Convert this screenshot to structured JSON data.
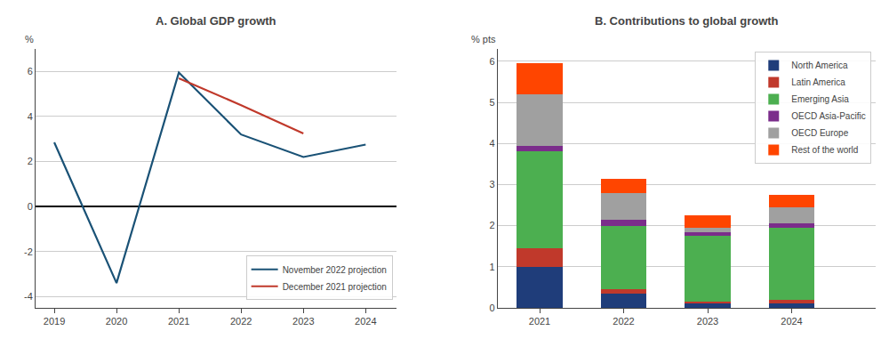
{
  "chart_data": [
    {
      "type": "line",
      "title": "A. Global GDP growth",
      "y_label": "%",
      "x": [
        2019,
        2020,
        2021,
        2022,
        2023,
        2024
      ],
      "series": [
        {
          "name": "November 2022 projection",
          "color": "#1a5276",
          "values": [
            2.85,
            -3.4,
            5.95,
            3.2,
            2.2,
            2.75
          ]
        },
        {
          "name": "December 2021 projection",
          "color": "#c0392b",
          "values": [
            null,
            null,
            5.7,
            4.5,
            3.25,
            null
          ]
        }
      ],
      "xlim": [
        2018.7,
        2024.5
      ],
      "xticks": [
        2019,
        2020,
        2021,
        2022,
        2023,
        2024
      ],
      "ylim": [
        -4.5,
        7
      ],
      "yticks": [
        -4,
        -2,
        0,
        2,
        4,
        6
      ],
      "grid": true,
      "legend": "lower right"
    },
    {
      "type": "bar",
      "title": "B. Contributions to global growth",
      "y_label": "% pts",
      "stacked": true,
      "x": [
        2021,
        2022,
        2023,
        2024
      ],
      "series": [
        {
          "name": "North America",
          "color": "#1f3d7a",
          "values": [
            1.0,
            0.35,
            0.1,
            0.1
          ]
        },
        {
          "name": "Latin America",
          "color": "#c0392b",
          "values": [
            0.45,
            0.1,
            0.05,
            0.1
          ]
        },
        {
          "name": "Emerging Asia",
          "color": "#4caf50",
          "values": [
            2.35,
            1.55,
            1.6,
            1.75
          ]
        },
        {
          "name": "OECD Asia-Pacific",
          "color": "#7b2d8b",
          "values": [
            0.15,
            0.15,
            0.1,
            0.1
          ]
        },
        {
          "name": "OECD Europe",
          "color": "#a0a0a0",
          "values": [
            1.25,
            0.65,
            0.1,
            0.4
          ]
        },
        {
          "name": "Rest of the world",
          "color": "#ff4500",
          "values": [
            0.75,
            0.35,
            0.3,
            0.3
          ]
        }
      ],
      "xlim": [
        2020.5,
        2025.0
      ],
      "xticks": [
        2021,
        2022,
        2023,
        2024
      ],
      "ylim": [
        0,
        6.3
      ],
      "yticks": [
        0,
        1,
        2,
        3,
        4,
        5,
        6
      ],
      "grid": true,
      "legend": "upper right"
    }
  ]
}
